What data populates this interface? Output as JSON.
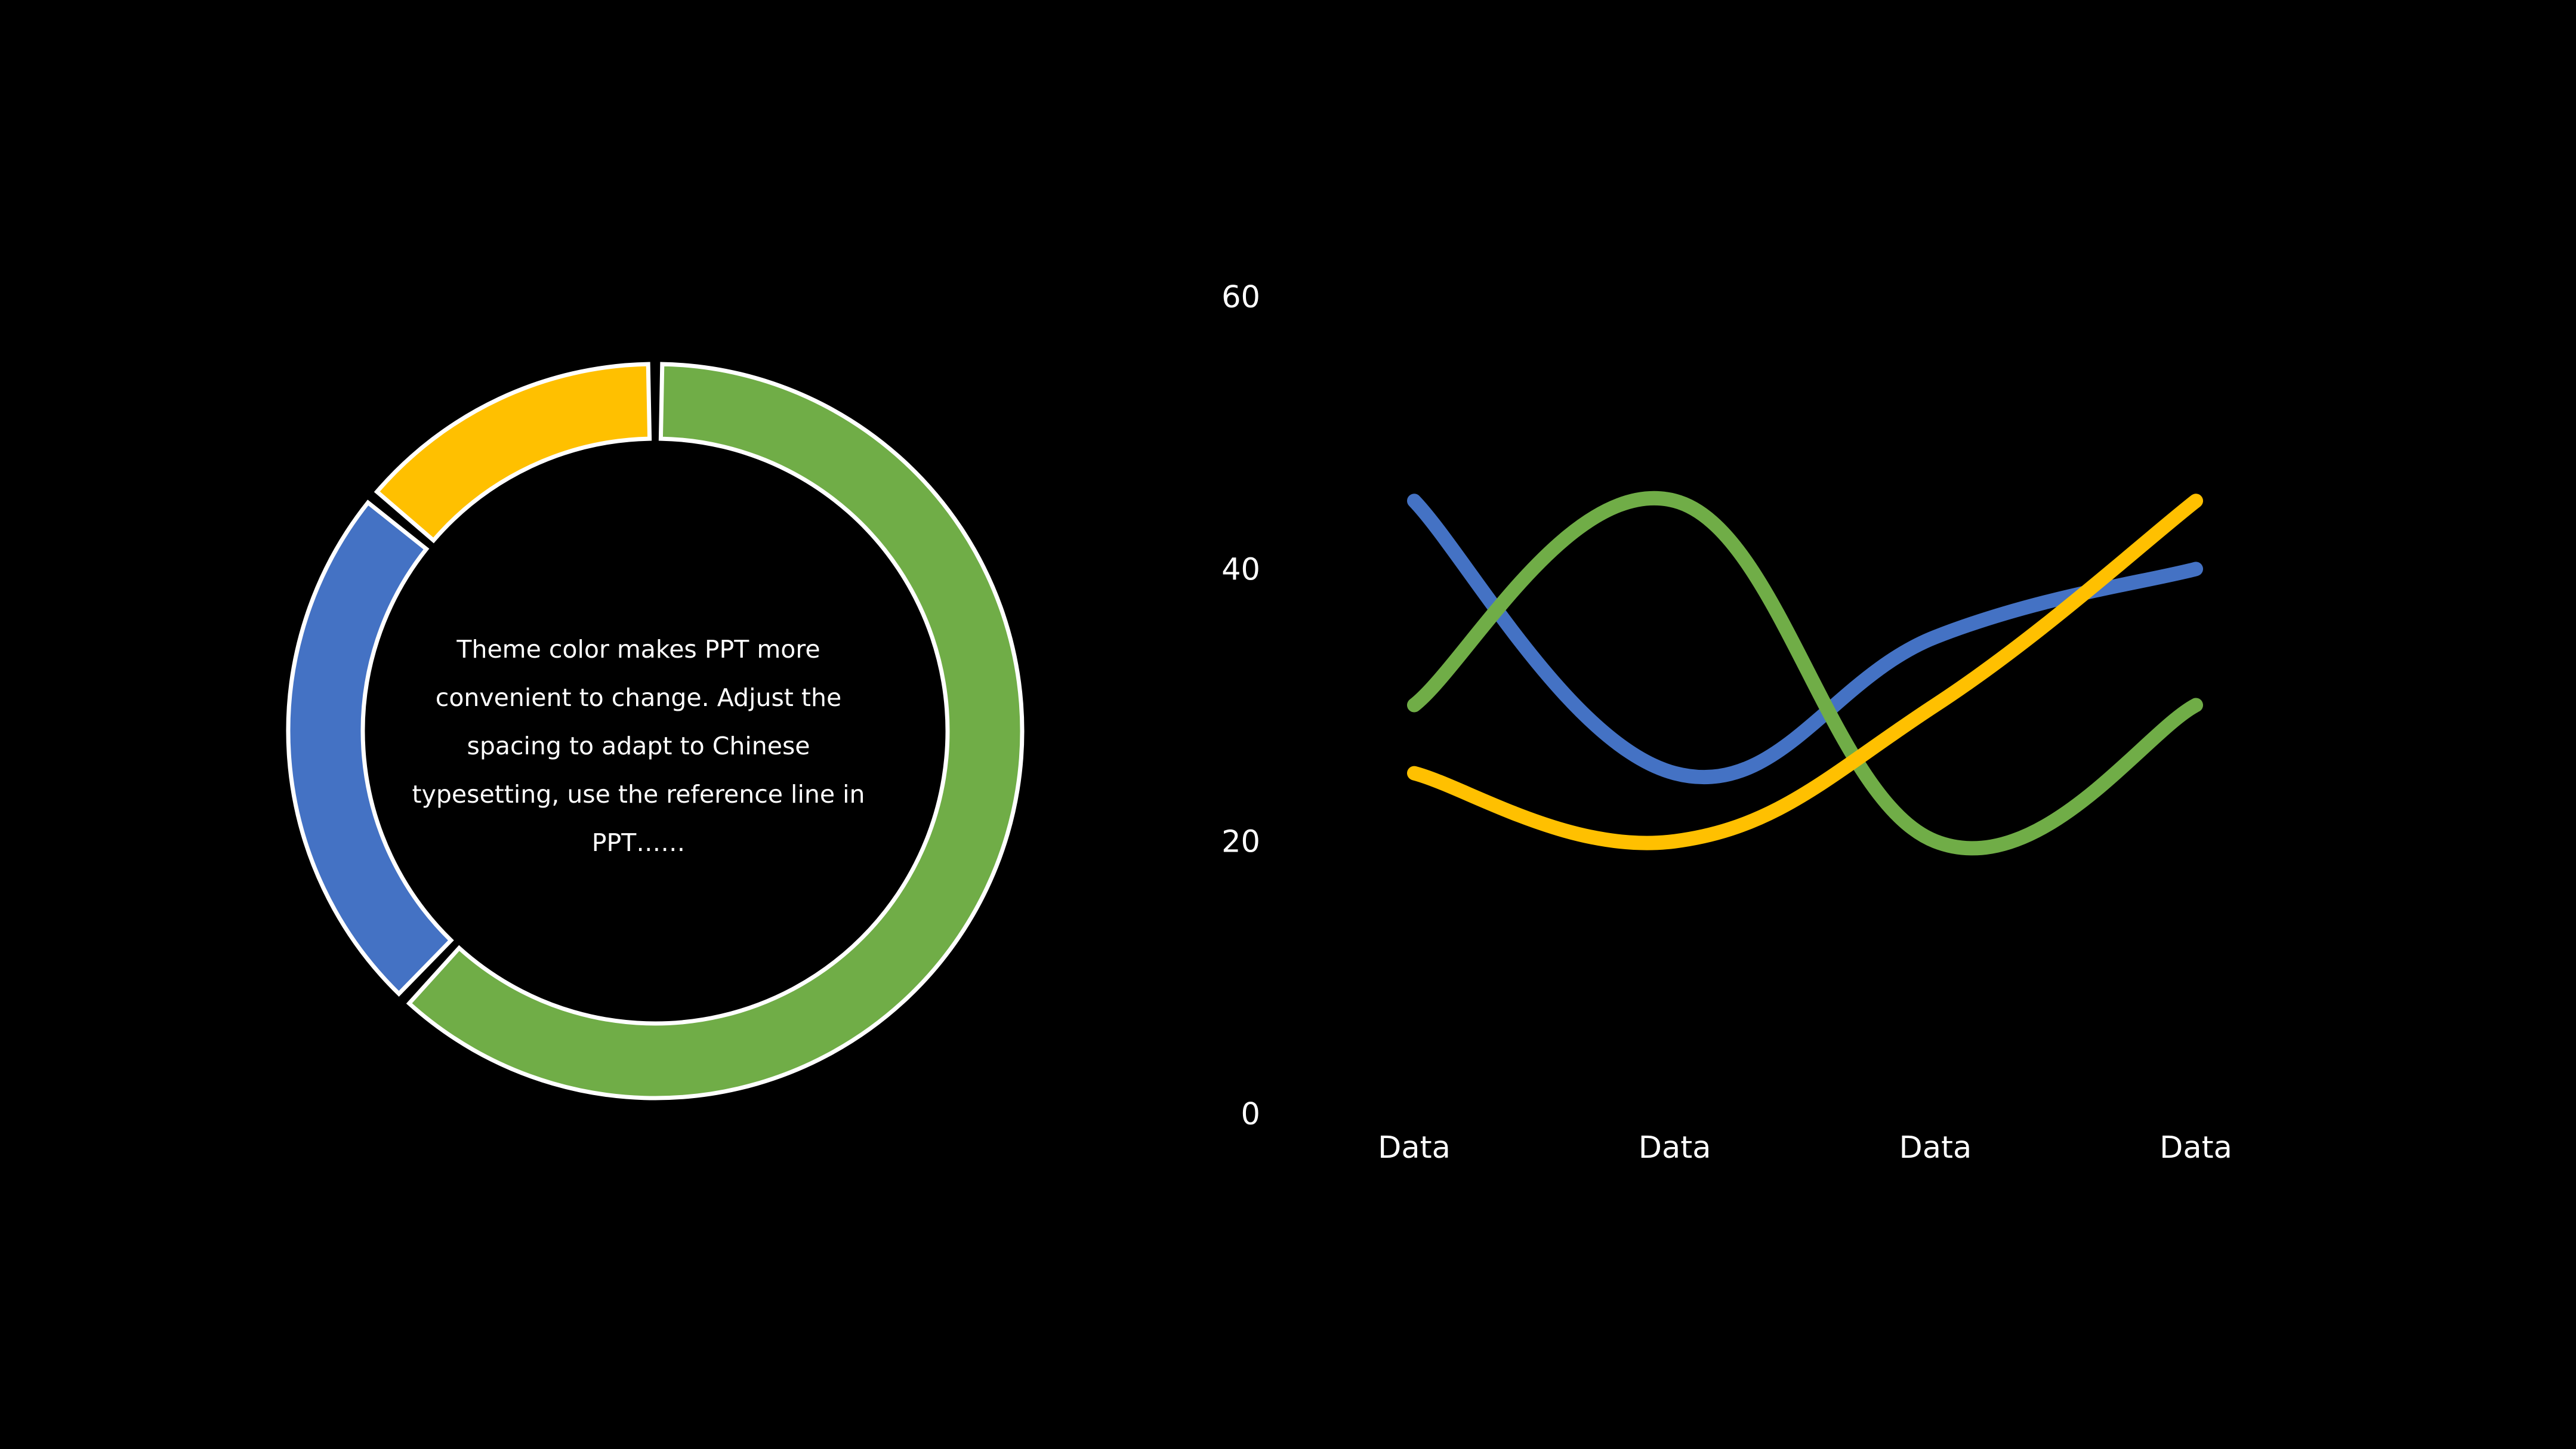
{
  "donut": {
    "text": "Theme color makes PPT more convenient to change. Adjust the spacing to adapt to Chinese typesetting, use the reference line in PPT……",
    "segments": [
      {
        "value": 62,
        "color": "#70AD47"
      },
      {
        "value": 24,
        "color": "#4472C4"
      },
      {
        "value": 14,
        "color": "#FFC000"
      }
    ]
  },
  "chart_data": [
    {
      "type": "pie",
      "values": [
        62,
        24,
        14
      ],
      "colors": [
        "#70AD47",
        "#4472C4",
        "#FFC000"
      ],
      "center_text": "Theme color makes PPT more convenient to change. Adjust the spacing to adapt to Chinese typesetting, use the reference line in PPT……"
    },
    {
      "type": "line",
      "categories": [
        "Data",
        "Data",
        "Data",
        "Data"
      ],
      "yticks": [
        "0",
        "20",
        "40",
        "60"
      ],
      "ylim": [
        0,
        60
      ],
      "grid": false,
      "legend": "none",
      "series": [
        {
          "values": [
            45,
            25,
            35,
            40
          ],
          "color": "#4472C4"
        },
        {
          "values": [
            30,
            45,
            20,
            30
          ],
          "color": "#70AD47"
        },
        {
          "values": [
            25,
            20,
            30,
            45
          ],
          "color": "#FFC000"
        }
      ]
    }
  ]
}
